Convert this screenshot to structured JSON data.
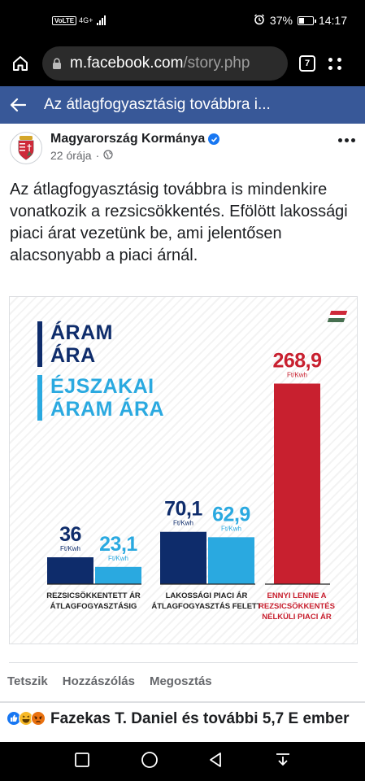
{
  "status_bar": {
    "network": "VoLTE",
    "network_type": "4G+",
    "battery_percent": "37%",
    "battery_level": 0.37,
    "time": "14:17"
  },
  "browser": {
    "url_domain": "m.facebook.com",
    "url_path": "/story.php",
    "tab_count": "7"
  },
  "fb_header": {
    "title": "Az átlagfogyasztásig továbbra i..."
  },
  "post": {
    "page_name": "Magyarország Kormánya",
    "time": "22 órája",
    "separator": "·",
    "text": "Az átlagfogyasztásig továbbra is mindenkire vonatkozik a rezsicsökkentés. Efölött lakossági piaci árat vezetünk be, ami jelentősen alacsonyabb a piaci árnál."
  },
  "infographic": {
    "legend_primary": "ÁRAM ÁRA",
    "legend_secondary": "ÉJSZAKAI ÁRAM ÁRA",
    "unit": "Ft/Kwh",
    "colors": {
      "primary": "#0e2c6b",
      "secondary": "#2aa9e0",
      "highlight": "#c8202f",
      "flag_red": "#ce2939",
      "flag_white": "#ffffff",
      "flag_green": "#477050"
    }
  },
  "chart_data": {
    "type": "bar",
    "categories": [
      "REZSICSÖKKENTETT ÁR ÁTLAGFOGYASZTÁSIG",
      "LAKOSSÁGI PIACI ÁR ÁTLAGFOGYASZTÁS FELETT",
      "ENNYI LENNE A REZSICSÖKKENTÉS NÉLKÜLI PIACI ÁR"
    ],
    "category_lines": [
      [
        "REZSICSÖKKENTETT ÁR",
        "ÁTLAGFOGYASZTÁSIG"
      ],
      [
        "LAKOSSÁGI PIACI ÁR",
        "ÁTLAGFOGYASZTÁS FELETT"
      ],
      [
        "ENNYI LENNE A",
        "REZSICSÖKKENTÉS",
        "NÉLKÜLI PIACI ÁR"
      ]
    ],
    "series": [
      {
        "name": "ÁRAM ÁRA",
        "values": [
          36,
          70.1,
          null
        ],
        "labels": [
          "36",
          "70,1",
          ""
        ]
      },
      {
        "name": "ÉJSZAKAI ÁRAM ÁRA",
        "values": [
          23.1,
          62.9,
          null
        ],
        "labels": [
          "23,1",
          "62,9",
          ""
        ]
      },
      {
        "name": "",
        "values": [
          null,
          null,
          268.9
        ],
        "labels": [
          "",
          "",
          "268,9"
        ]
      }
    ],
    "ylim": [
      0,
      300
    ],
    "grid": false,
    "legend_position": "top-left"
  },
  "actions": {
    "like": "Tetszik",
    "comment": "Hozzászólás",
    "share": "Megosztás"
  },
  "reactions": {
    "summary": "Fazekas T. Daniel és további 5,7 E ember"
  }
}
